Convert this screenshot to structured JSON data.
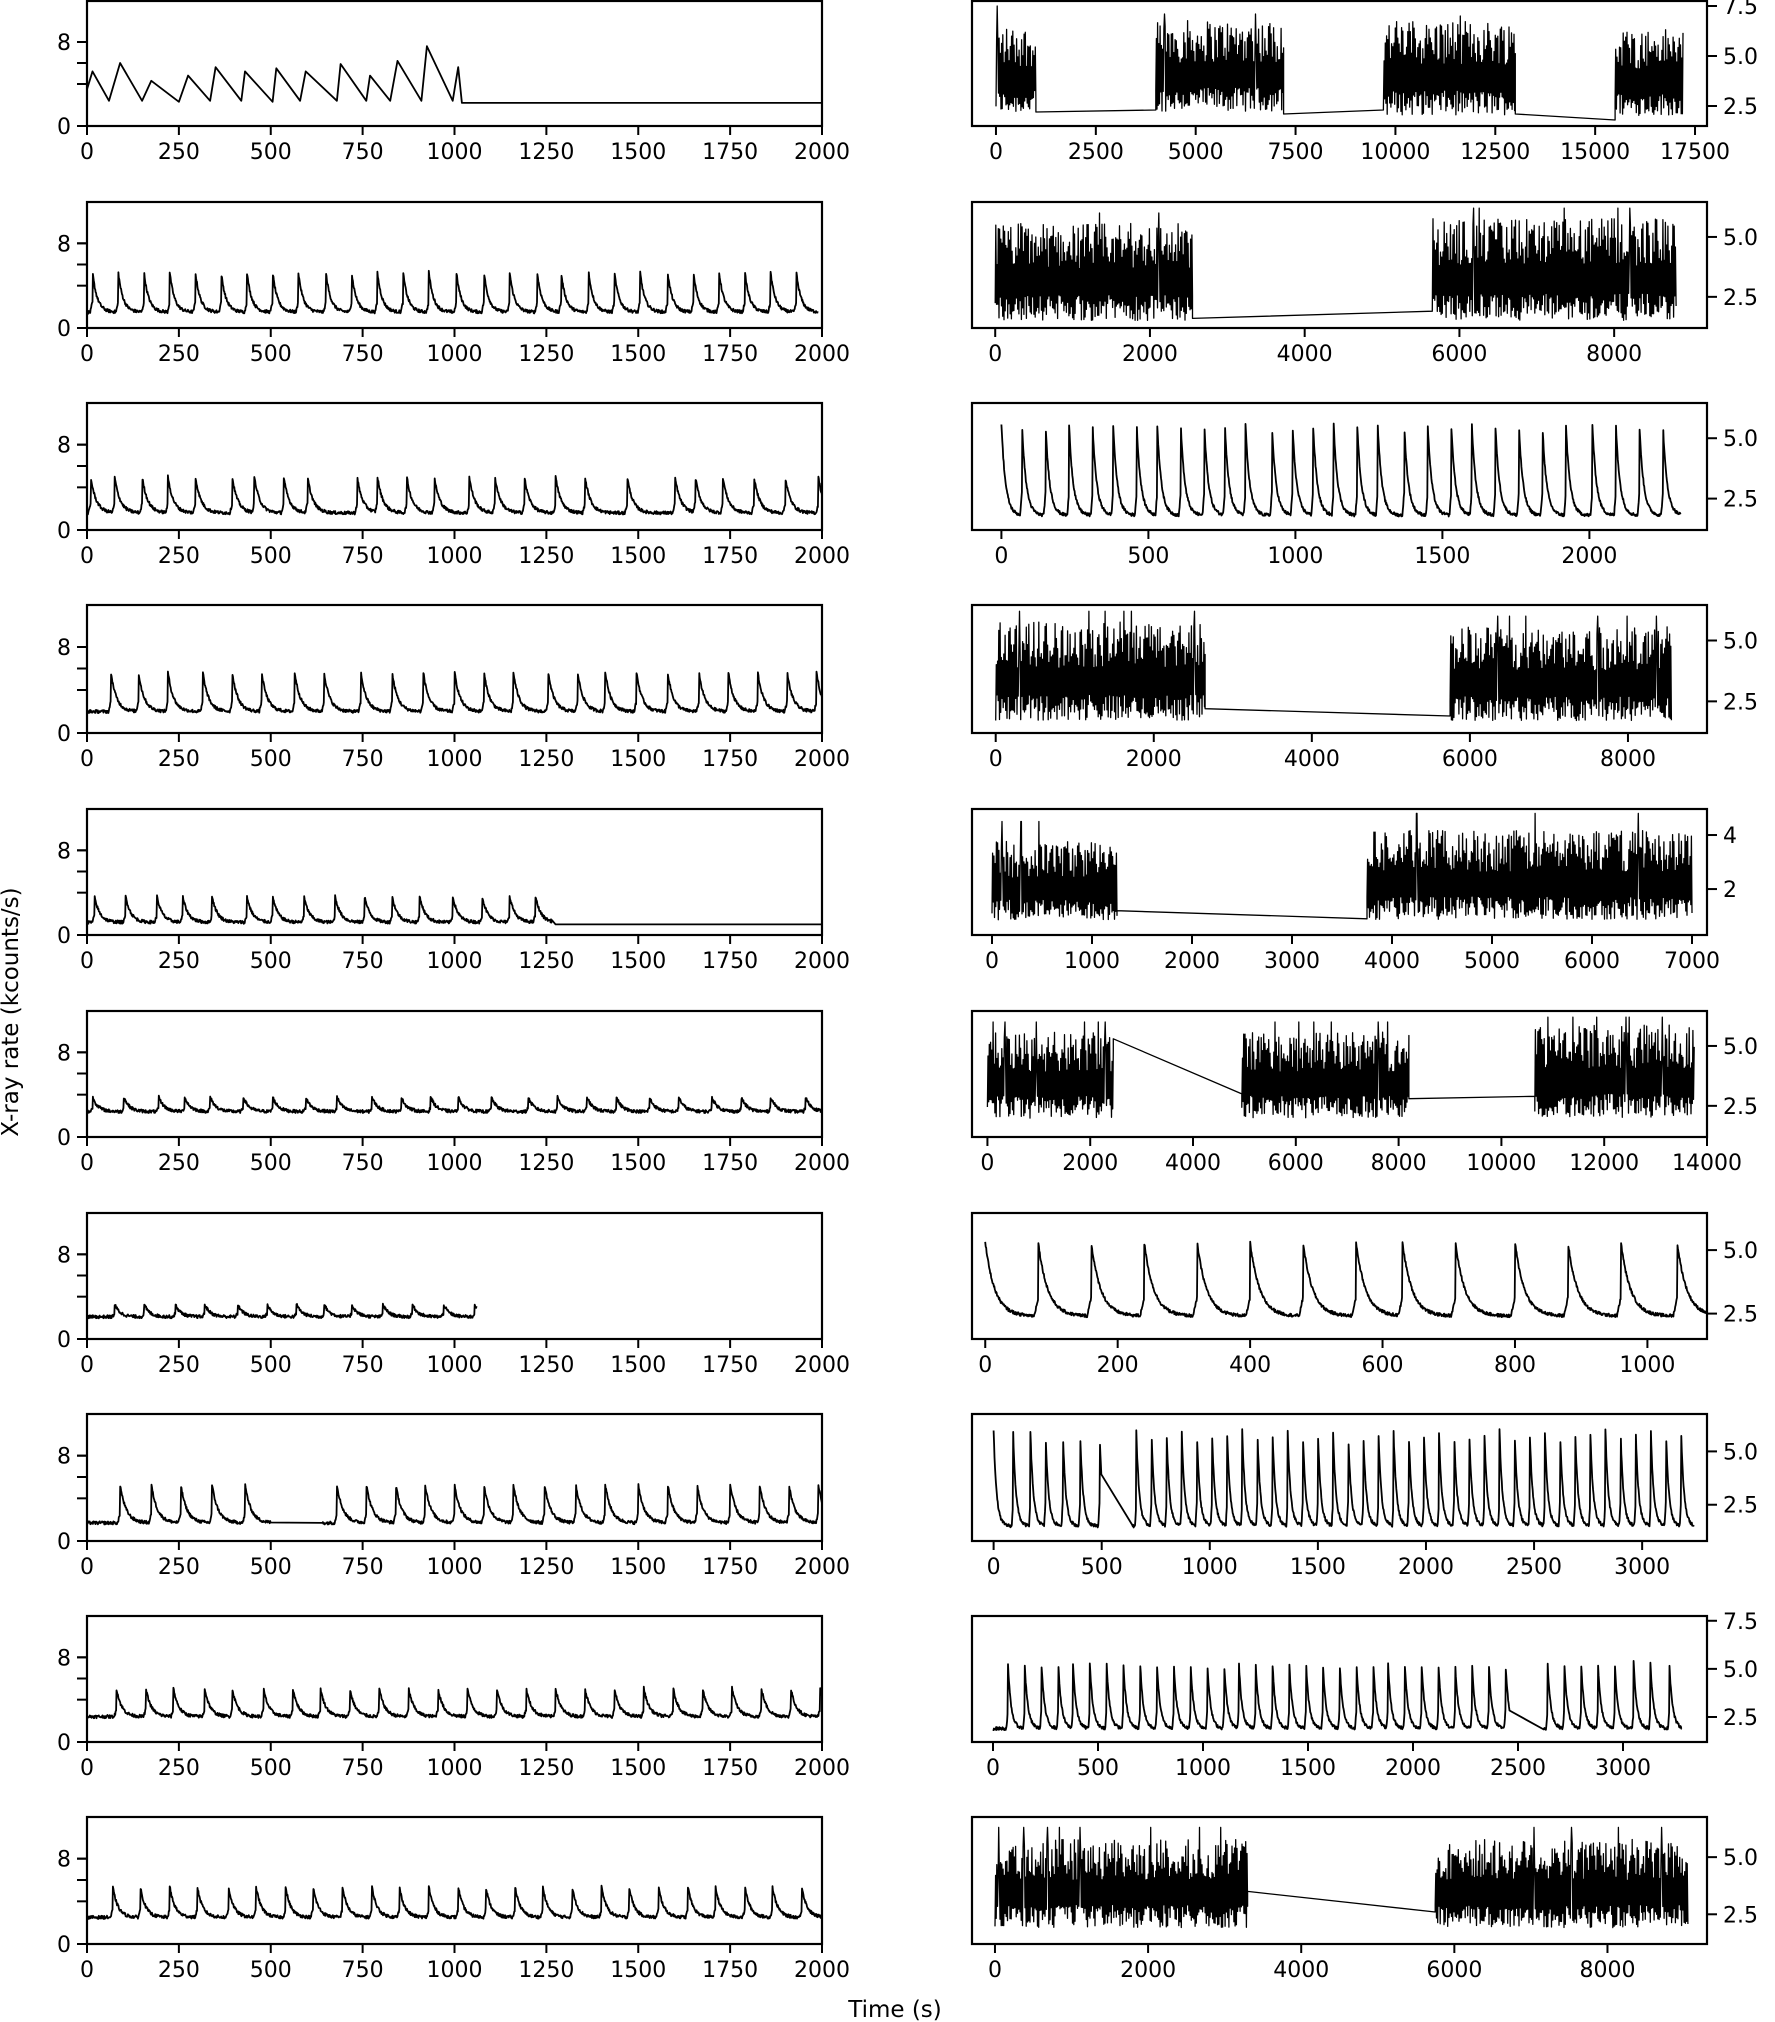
{
  "figure": {
    "ylabel": "X-ray rate (kcounts/s)",
    "xlabel": "Time (s)",
    "line_color": "#000000"
  },
  "chart_data": [
    {
      "type": "line",
      "panel": "left-1",
      "xlim": [
        0,
        2000
      ],
      "ylim": [
        0,
        12
      ],
      "x_ticks": [
        0,
        250,
        500,
        750,
        1000,
        1250,
        1500,
        1750,
        2000
      ],
      "y_ticks": [
        0,
        8
      ],
      "y_minor_ticks": [
        4,
        6,
        8
      ],
      "axis_side": "left",
      "x": [
        0,
        15,
        60,
        90,
        150,
        175,
        250,
        275,
        335,
        350,
        420,
        430,
        505,
        515,
        580,
        595,
        680,
        690,
        760,
        770,
        825,
        845,
        910,
        925,
        995,
        1010,
        1020,
        2000
      ],
      "y": [
        3.5,
        5.2,
        2.4,
        6.0,
        2.4,
        4.3,
        2.3,
        4.8,
        2.4,
        5.6,
        2.4,
        5.2,
        2.3,
        5.5,
        2.4,
        5.2,
        2.4,
        5.9,
        2.4,
        4.8,
        2.4,
        6.2,
        2.4,
        7.6,
        2.4,
        5.6,
        2.2,
        2.2
      ]
    },
    {
      "type": "line",
      "panel": "right-1",
      "xlim": [
        -600,
        17800
      ],
      "ylim": [
        1.5,
        7.8
      ],
      "x_ticks": [
        0,
        2500,
        5000,
        7500,
        10000,
        12500,
        15000,
        17500
      ],
      "y_ticks": [
        2.5,
        5.0,
        7.5
      ],
      "axis_side": "right",
      "segments": [
        {
          "x_range": [
            0,
            1000
          ],
          "min": 1.9,
          "max": 6.5,
          "peak": 7.5
        },
        {
          "x_range": [
            4000,
            7200
          ],
          "min": 2.0,
          "max": 6.8,
          "peak": 7.1
        },
        {
          "x_range": [
            9700,
            13000
          ],
          "min": 1.8,
          "max": 6.8,
          "peak": 7.0
        },
        {
          "x_range": [
            15500,
            17200
          ],
          "min": 1.8,
          "max": 6.4,
          "peak": 6.5
        }
      ],
      "gaps": [
        [
          1000,
          2.2,
          4000,
          2.3
        ],
        [
          7200,
          2.1,
          9700,
          2.3
        ],
        [
          13000,
          2.1,
          15500,
          1.8
        ]
      ]
    },
    {
      "type": "line",
      "panel": "left-2",
      "xlim": [
        0,
        2000
      ],
      "ylim": [
        0,
        12
      ],
      "x_ticks": [
        0,
        250,
        500,
        750,
        1000,
        1250,
        1500,
        1750,
        2000
      ],
      "y_ticks": [
        0,
        8
      ],
      "y_minor_ticks": [
        4,
        6,
        8
      ],
      "axis_side": "left",
      "peak_times": [
        15,
        85,
        155,
        225,
        295,
        365,
        435,
        505,
        575,
        650,
        720,
        790,
        860,
        930,
        1005,
        1080,
        1150,
        1225,
        1290,
        1365,
        1435,
        1505,
        1580,
        1650,
        1720,
        1790,
        1860,
        1930
      ],
      "baseline": 1.5,
      "peak_height": 5.3
    },
    {
      "type": "line",
      "panel": "right-2",
      "xlim": [
        -300,
        9200
      ],
      "ylim": [
        1.2,
        6.5
      ],
      "x_ticks": [
        0,
        2000,
        4000,
        6000,
        8000
      ],
      "y_ticks": [
        2.5,
        5.0
      ],
      "axis_side": "right",
      "segments": [
        {
          "x_range": [
            0,
            2550
          ],
          "min": 1.3,
          "max": 5.6,
          "peak": 6.0
        },
        {
          "x_range": [
            5650,
            8800
          ],
          "min": 1.3,
          "max": 5.8,
          "peak": 6.2
        }
      ],
      "gaps": [
        [
          2550,
          1.6,
          5650,
          1.9
        ]
      ]
    },
    {
      "type": "line",
      "panel": "left-3",
      "xlim": [
        0,
        2000
      ],
      "ylim": [
        0,
        12
      ],
      "x_ticks": [
        0,
        250,
        500,
        750,
        1000,
        1250,
        1500,
        1750,
        2000
      ],
      "y_ticks": [
        0,
        8
      ],
      "y_minor_ticks": [
        4,
        6,
        8
      ],
      "axis_side": "left",
      "peak_times": [
        10,
        75,
        150,
        220,
        295,
        395,
        455,
        535,
        600,
        735,
        790,
        870,
        945,
        1040,
        1110,
        1190,
        1275,
        1355,
        1470,
        1600,
        1655,
        1730,
        1815,
        1900,
        1990
      ],
      "baseline": 1.6,
      "peak_height": 5.0
    },
    {
      "type": "line",
      "panel": "right-3",
      "xlim": [
        -100,
        2400
      ],
      "ylim": [
        1.2,
        6.5
      ],
      "x_ticks": [
        0,
        500,
        1000,
        1500,
        2000
      ],
      "y_ticks": [
        2.5,
        5.0
      ],
      "axis_side": "right",
      "peak_times": [
        0,
        70,
        150,
        230,
        310,
        380,
        460,
        530,
        610,
        690,
        760,
        830,
        920,
        990,
        1060,
        1130,
        1210,
        1280,
        1370,
        1450,
        1530,
        1600,
        1680,
        1760,
        1840,
        1920,
        2010,
        2090,
        2170,
        2250
      ],
      "baseline": 1.8,
      "peak_height": 5.6
    },
    {
      "type": "line",
      "panel": "left-4",
      "xlim": [
        0,
        2000
      ],
      "ylim": [
        0,
        12
      ],
      "x_ticks": [
        0,
        250,
        500,
        750,
        1000,
        1250,
        1500,
        1750,
        2000
      ],
      "y_ticks": [
        0,
        8
      ],
      "y_minor_ticks": [
        4,
        6,
        8
      ],
      "axis_side": "left",
      "peak_times": [
        65,
        140,
        220,
        315,
        395,
        475,
        565,
        645,
        745,
        830,
        915,
        1000,
        1080,
        1160,
        1255,
        1335,
        1410,
        1495,
        1580,
        1665,
        1745,
        1825,
        1905,
        1985
      ],
      "baseline": 2.0,
      "peak_height": 5.7
    },
    {
      "type": "line",
      "panel": "right-4",
      "xlim": [
        -300,
        9000
      ],
      "ylim": [
        1.2,
        6.5
      ],
      "x_ticks": [
        0,
        2000,
        4000,
        6000,
        8000
      ],
      "y_ticks": [
        2.5,
        5.0
      ],
      "axis_side": "right",
      "segments": [
        {
          "x_range": [
            0,
            2650
          ],
          "min": 1.5,
          "max": 5.8,
          "peak": 6.2
        },
        {
          "x_range": [
            5750,
            8550
          ],
          "min": 1.5,
          "max": 5.6,
          "peak": 6.0
        }
      ],
      "gaps": [
        [
          2650,
          2.2,
          5750,
          1.9
        ]
      ]
    },
    {
      "type": "line",
      "panel": "left-5",
      "xlim": [
        0,
        2000
      ],
      "ylim": [
        0,
        12
      ],
      "x_ticks": [
        0,
        250,
        500,
        750,
        1000,
        1250,
        1500,
        1750,
        2000
      ],
      "y_ticks": [
        0,
        8
      ],
      "y_minor_ticks": [
        4,
        6,
        8
      ],
      "axis_side": "left",
      "peak_times": [
        20,
        105,
        190,
        260,
        340,
        435,
        505,
        590,
        675,
        755,
        830,
        905,
        995,
        1075,
        1150,
        1220
      ],
      "baseline": 1.2,
      "peak_height": 3.7,
      "end": 1265,
      "tail": 1.0
    },
    {
      "type": "line",
      "panel": "right-5",
      "xlim": [
        -200,
        7150
      ],
      "ylim": [
        0.3,
        5.0
      ],
      "x_ticks": [
        0,
        1000,
        2000,
        3000,
        4000,
        5000,
        6000,
        7000
      ],
      "y_ticks": [
        2,
        4
      ],
      "axis_side": "right",
      "segments": [
        {
          "x_range": [
            0,
            1250
          ],
          "min": 0.7,
          "max": 3.8,
          "peak": 4.5
        },
        {
          "x_range": [
            3750,
            7000
          ],
          "min": 0.7,
          "max": 4.2,
          "peak": 4.8
        }
      ],
      "gaps": [
        [
          1250,
          1.2,
          3750,
          0.9
        ]
      ]
    },
    {
      "type": "line",
      "panel": "left-6",
      "xlim": [
        0,
        2000
      ],
      "ylim": [
        0,
        12
      ],
      "x_ticks": [
        0,
        250,
        500,
        750,
        1000,
        1250,
        1500,
        1750,
        2000
      ],
      "y_ticks": [
        0,
        8
      ],
      "y_minor_ticks": [
        4,
        6,
        8
      ],
      "axis_side": "left",
      "peak_times": [
        15,
        100,
        195,
        265,
        335,
        425,
        505,
        595,
        680,
        775,
        855,
        935,
        1010,
        1100,
        1200,
        1280,
        1360,
        1440,
        1530,
        1610,
        1700,
        1780,
        1860,
        1955
      ],
      "baseline": 2.4,
      "peak_height": 3.8
    },
    {
      "type": "line",
      "panel": "right-6",
      "xlim": [
        -300,
        14000
      ],
      "ylim": [
        1.2,
        6.5
      ],
      "x_ticks": [
        0,
        2000,
        4000,
        6000,
        8000,
        10000,
        12000,
        14000
      ],
      "y_ticks": [
        2.5,
        5.0
      ],
      "axis_side": "right",
      "segments": [
        {
          "x_range": [
            0,
            2450
          ],
          "min": 1.8,
          "max": 5.6,
          "peak": 6.0
        },
        {
          "x_range": [
            4950,
            8200
          ],
          "min": 1.8,
          "max": 5.6,
          "peak": 6.0
        },
        {
          "x_range": [
            10650,
            13750
          ],
          "min": 1.8,
          "max": 5.9,
          "peak": 6.2
        }
      ],
      "gaps": [
        [
          2450,
          5.3,
          4950,
          3.0
        ],
        [
          8200,
          2.8,
          10650,
          2.9
        ]
      ]
    },
    {
      "type": "line",
      "panel": "left-7",
      "xlim": [
        0,
        2000
      ],
      "ylim": [
        0,
        12
      ],
      "x_ticks": [
        0,
        250,
        500,
        750,
        1000,
        1250,
        1500,
        1750,
        2000
      ],
      "y_ticks": [
        0,
        8
      ],
      "y_minor_ticks": [
        4,
        6,
        8
      ],
      "axis_side": "left",
      "peak_times": [
        75,
        155,
        240,
        320,
        410,
        490,
        570,
        645,
        720,
        805,
        885,
        970,
        1055
      ],
      "baseline": 2.1,
      "peak_height": 3.3,
      "end": 1060
    },
    {
      "type": "line",
      "panel": "right-7",
      "xlim": [
        -20,
        1090
      ],
      "ylim": [
        1.5,
        6.5
      ],
      "x_ticks": [
        0,
        200,
        400,
        600,
        800,
        1000
      ],
      "y_ticks": [
        2.5,
        5.0
      ],
      "axis_side": "right",
      "peak_times": [
        0,
        80,
        160,
        240,
        320,
        400,
        480,
        560,
        630,
        710,
        800,
        880,
        960,
        1045
      ],
      "baseline": 2.4,
      "peak_height": 5.3
    },
    {
      "type": "line",
      "panel": "left-8",
      "xlim": [
        0,
        2000
      ],
      "ylim": [
        0,
        12
      ],
      "x_ticks": [
        0,
        250,
        500,
        750,
        1000,
        1250,
        1500,
        1750,
        2000
      ],
      "y_ticks": [
        0,
        8
      ],
      "y_minor_ticks": [
        4,
        6,
        8
      ],
      "axis_side": "left",
      "peak_times": [
        90,
        175,
        255,
        340,
        430,
        680,
        760,
        840,
        920,
        1000,
        1080,
        1160,
        1245,
        1330,
        1410,
        1500,
        1580,
        1660,
        1750,
        1830,
        1910,
        1990
      ],
      "baseline": 1.7,
      "peak_height": 5.3,
      "gap": [
        500,
        640
      ]
    },
    {
      "type": "line",
      "panel": "right-8",
      "xlim": [
        -100,
        3300
      ],
      "ylim": [
        0.8,
        6.8
      ],
      "x_ticks": [
        0,
        500,
        1000,
        1500,
        2000,
        2500,
        3000
      ],
      "y_ticks": [
        2.5,
        5.0
      ],
      "axis_side": "right",
      "peak_times": [
        0,
        90,
        170,
        240,
        320,
        400,
        490,
        660,
        730,
        800,
        870,
        940,
        1010,
        1080,
        1150,
        1220,
        1290,
        1360,
        1430,
        1500,
        1570,
        1640,
        1710,
        1780,
        1850,
        1920,
        1990,
        2060,
        2130,
        2200,
        2270,
        2340,
        2410,
        2480,
        2550,
        2620,
        2690,
        2760,
        2830,
        2900,
        2970,
        3040,
        3110,
        3180
      ],
      "baseline": 1.5,
      "peak_height": 6.0,
      "gap": [
        500,
        640
      ]
    },
    {
      "type": "line",
      "panel": "left-9",
      "xlim": [
        0,
        2000
      ],
      "ylim": [
        0,
        12
      ],
      "x_ticks": [
        0,
        250,
        500,
        750,
        1000,
        1250,
        1500,
        1750,
        2000
      ],
      "y_ticks": [
        0,
        8
      ],
      "y_minor_ticks": [
        4,
        6,
        8
      ],
      "axis_side": "left",
      "peak_times": [
        80,
        160,
        235,
        320,
        395,
        480,
        560,
        635,
        715,
        795,
        875,
        955,
        1035,
        1115,
        1195,
        1275,
        1355,
        1435,
        1515,
        1595,
        1675,
        1755,
        1835,
        1915,
        1995
      ],
      "baseline": 2.4,
      "peak_height": 5.1
    },
    {
      "type": "line",
      "panel": "right-9",
      "xlim": [
        -100,
        3400
      ],
      "ylim": [
        1.2,
        7.8
      ],
      "x_ticks": [
        0,
        500,
        1000,
        1500,
        2000,
        2500,
        3000
      ],
      "y_ticks": [
        2.5,
        5.0,
        7.5
      ],
      "axis_side": "right",
      "peak_times": [
        70,
        150,
        230,
        310,
        380,
        460,
        540,
        620,
        700,
        780,
        860,
        940,
        1020,
        1100,
        1170,
        1250,
        1330,
        1410,
        1490,
        1570,
        1650,
        1730,
        1810,
        1880,
        1960,
        2040,
        2120,
        2200,
        2280,
        2360,
        2440,
        2640,
        2720,
        2800,
        2880,
        2960,
        3050,
        3130,
        3220
      ],
      "baseline": 1.9,
      "peak_height": 5.5,
      "gap": [
        2460,
        2620
      ]
    },
    {
      "type": "line",
      "panel": "left-10",
      "xlim": [
        0,
        2000
      ],
      "ylim": [
        0,
        12
      ],
      "x_ticks": [
        0,
        250,
        500,
        750,
        1000,
        1250,
        1500,
        1750,
        2000
      ],
      "y_ticks": [
        0,
        8
      ],
      "y_minor_ticks": [
        4,
        6,
        8
      ],
      "axis_side": "left",
      "peak_times": [
        70,
        145,
        225,
        300,
        385,
        460,
        540,
        615,
        695,
        775,
        850,
        930,
        1010,
        1085,
        1165,
        1240,
        1320,
        1400,
        1475,
        1555,
        1635,
        1710,
        1790,
        1865,
        1945
      ],
      "baseline": 2.5,
      "peak_height": 5.4
    },
    {
      "type": "line",
      "panel": "right-10",
      "xlim": [
        -300,
        9300
      ],
      "ylim": [
        1.2,
        6.8
      ],
      "x_ticks": [
        0,
        2000,
        4000,
        6000,
        8000
      ],
      "y_ticks": [
        2.5,
        5.0
      ],
      "axis_side": "right",
      "segments": [
        {
          "x_range": [
            0,
            3300
          ],
          "min": 1.7,
          "max": 5.8,
          "peak": 6.3
        },
        {
          "x_range": [
            5750,
            9050
          ],
          "min": 1.7,
          "max": 5.8,
          "peak": 6.3
        }
      ],
      "gaps": [
        [
          3300,
          3.5,
          5750,
          2.6
        ]
      ]
    }
  ]
}
